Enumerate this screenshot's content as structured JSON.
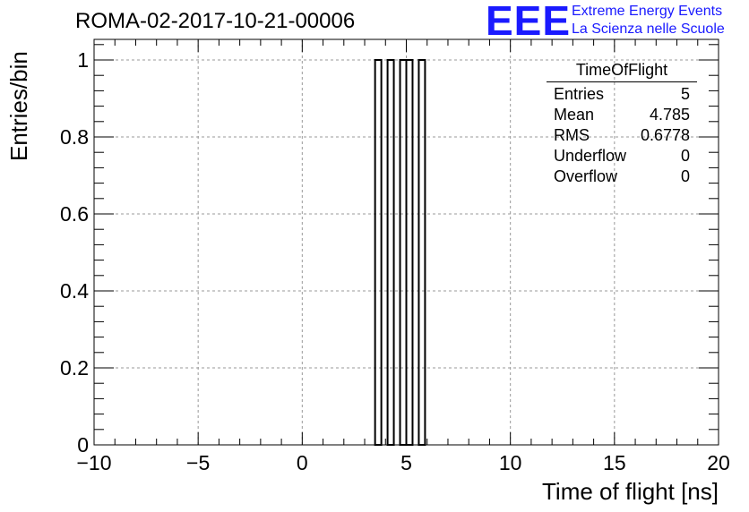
{
  "chart_data": {
    "type": "histogram",
    "title": "ROMA-02-2017-10-21-00006",
    "xlabel": "Time of flight [ns]",
    "ylabel": "Entries/bin",
    "xlim": [
      -10,
      20
    ],
    "ylim": [
      0,
      1
    ],
    "x_ticks": [
      -10,
      -5,
      0,
      5,
      10,
      15,
      20
    ],
    "y_ticks": [
      0,
      0.2,
      0.4,
      0.6,
      0.8,
      1
    ],
    "grid": true,
    "bins": [
      {
        "low": 3.5,
        "high": 3.8,
        "value": 1
      },
      {
        "low": 4.1,
        "high": 4.4,
        "value": 1
      },
      {
        "low": 4.7,
        "high": 5.0,
        "value": 1
      },
      {
        "low": 5.0,
        "high": 5.3,
        "value": 1
      },
      {
        "low": 5.6,
        "high": 5.9,
        "value": 1
      }
    ]
  },
  "stats_box": {
    "name": "TimeOfFlight",
    "rows": [
      {
        "label": "Entries",
        "value": "5"
      },
      {
        "label": "Mean",
        "value": "4.785"
      },
      {
        "label": "RMS",
        "value": "0.6778"
      },
      {
        "label": "Underflow",
        "value": "0"
      },
      {
        "label": "Overflow",
        "value": "0"
      }
    ]
  },
  "branding": {
    "logo": "EEE",
    "line1": "Extreme Energy Events",
    "line2": "La Scienza nelle Scuole",
    "color": "#1a1aff"
  }
}
